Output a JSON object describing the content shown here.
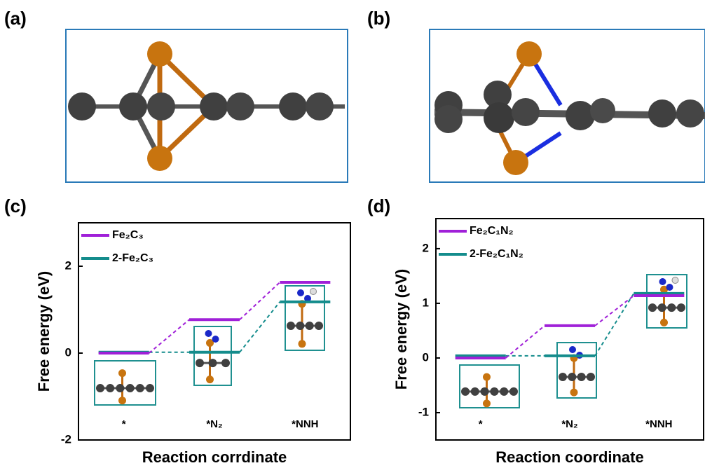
{
  "panel_labels": [
    "(a)",
    "(b)",
    "(c)",
    "(d)"
  ],
  "chart_data": [
    {
      "type": "energy-level",
      "y_label": "Free energy (eV)",
      "x_label": "Reaction corrdinate",
      "categories": [
        "*",
        "*N₂",
        "*NNH"
      ],
      "series": [
        {
          "name": "Fe₂C₃",
          "color": "#a020d8",
          "values": [
            0,
            0.77,
            1.63
          ]
        },
        {
          "name": "2-Fe₂C₃",
          "color": "#148c8c",
          "values": [
            0.02,
            0.02,
            1.18
          ]
        }
      ],
      "ylim": [
        -2,
        3
      ],
      "yticks": [
        -2,
        0,
        2
      ],
      "legend": "upper left"
    },
    {
      "type": "energy-level",
      "y_label": "Free energy (eV)",
      "x_label": "Reaction coordinate",
      "categories": [
        "*",
        "*N₂",
        "*NNH"
      ],
      "series": [
        {
          "name": "Fe₂C₁N₂",
          "color": "#a020d8",
          "values": [
            0,
            0.59,
            1.14
          ]
        },
        {
          "name": "2-Fe₂C₁N₂",
          "color": "#148c8c",
          "values": [
            0.04,
            0.04,
            1.18
          ]
        }
      ],
      "ylim": [
        -1.5,
        2.55
      ],
      "yticks": [
        -1,
        0,
        1,
        2
      ],
      "legend": "upper left"
    }
  ]
}
